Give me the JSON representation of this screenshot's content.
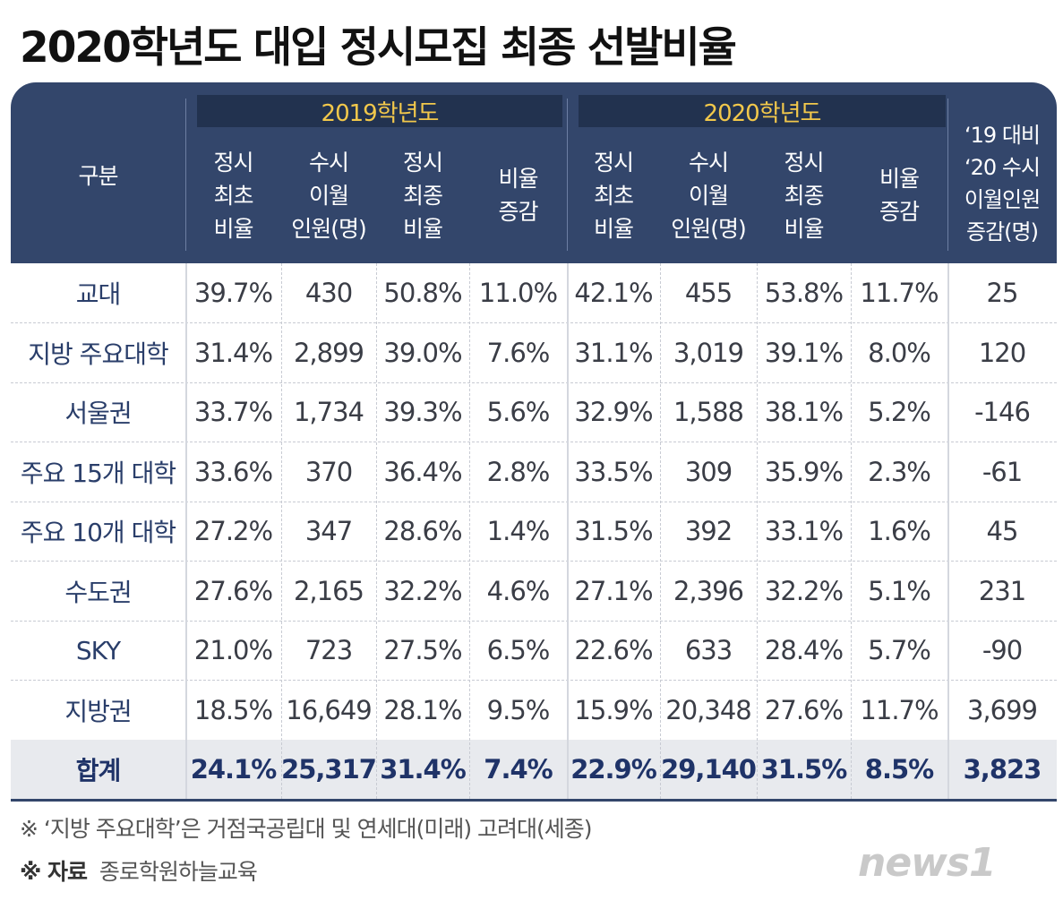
{
  "title": "2020학년도 대입 정시모집 최종 선발비율",
  "colors": {
    "header": "#33466b",
    "year_band": "#22324f",
    "year_text": "#f2c84b"
  },
  "header": {
    "category": "구분",
    "year_2019": "2019학년도",
    "year_2020": "2020학년도",
    "columns_2019": [
      [
        "정시",
        "최초",
        "비율"
      ],
      [
        "수시",
        "이월",
        "인원(명)"
      ],
      [
        "정시",
        "최종",
        "비율"
      ],
      [
        "비율",
        "증감"
      ]
    ],
    "columns_2020": [
      [
        "정시",
        "최초",
        "비율"
      ],
      [
        "수시",
        "이월",
        "인원(명)"
      ],
      [
        "정시",
        "최종",
        "비율"
      ],
      [
        "비율",
        "증감"
      ]
    ],
    "change_column": [
      "‘19 대비",
      "‘20 수시",
      "이월인원",
      "증감(명)"
    ]
  },
  "rows": [
    [
      "교대",
      "39.7%",
      "430",
      "50.8%",
      "11.0%",
      "42.1%",
      "455",
      "53.8%",
      "11.7%",
      "25"
    ],
    [
      "지방 주요대학",
      "31.4%",
      "2,899",
      "39.0%",
      "7.6%",
      "31.1%",
      "3,019",
      "39.1%",
      "8.0%",
      "120"
    ],
    [
      "서울권",
      "33.7%",
      "1,734",
      "39.3%",
      "5.6%",
      "32.9%",
      "1,588",
      "38.1%",
      "5.2%",
      "-146"
    ],
    [
      "주요 15개 대학",
      "33.6%",
      "370",
      "36.4%",
      "2.8%",
      "33.5%",
      "309",
      "35.9%",
      "2.3%",
      "-61"
    ],
    [
      "주요 10개 대학",
      "27.2%",
      "347",
      "28.6%",
      "1.4%",
      "31.5%",
      "392",
      "33.1%",
      "1.6%",
      "45"
    ],
    [
      "수도권",
      "27.6%",
      "2,165",
      "32.2%",
      "4.6%",
      "27.1%",
      "2,396",
      "32.2%",
      "5.1%",
      "231"
    ],
    [
      "SKY",
      "21.0%",
      "723",
      "27.5%",
      "6.5%",
      "22.6%",
      "633",
      "28.4%",
      "5.7%",
      "-90"
    ],
    [
      "지방권",
      "18.5%",
      "16,649",
      "28.1%",
      "9.5%",
      "15.9%",
      "20,348",
      "27.6%",
      "11.7%",
      "3,699"
    ]
  ],
  "total": [
    "합계",
    "24.1%",
    "25,317",
    "31.4%",
    "7.4%",
    "22.9%",
    "29,140",
    "31.5%",
    "8.5%",
    "3,823"
  ],
  "notes": {
    "note1": "※ ‘지방 주요대학’은 거점국공립대 및 연세대(미래) 고려대(세종)",
    "note2_prefix": "※ 자료",
    "note2_text": "종로학원하늘교육"
  },
  "logo": "news1"
}
